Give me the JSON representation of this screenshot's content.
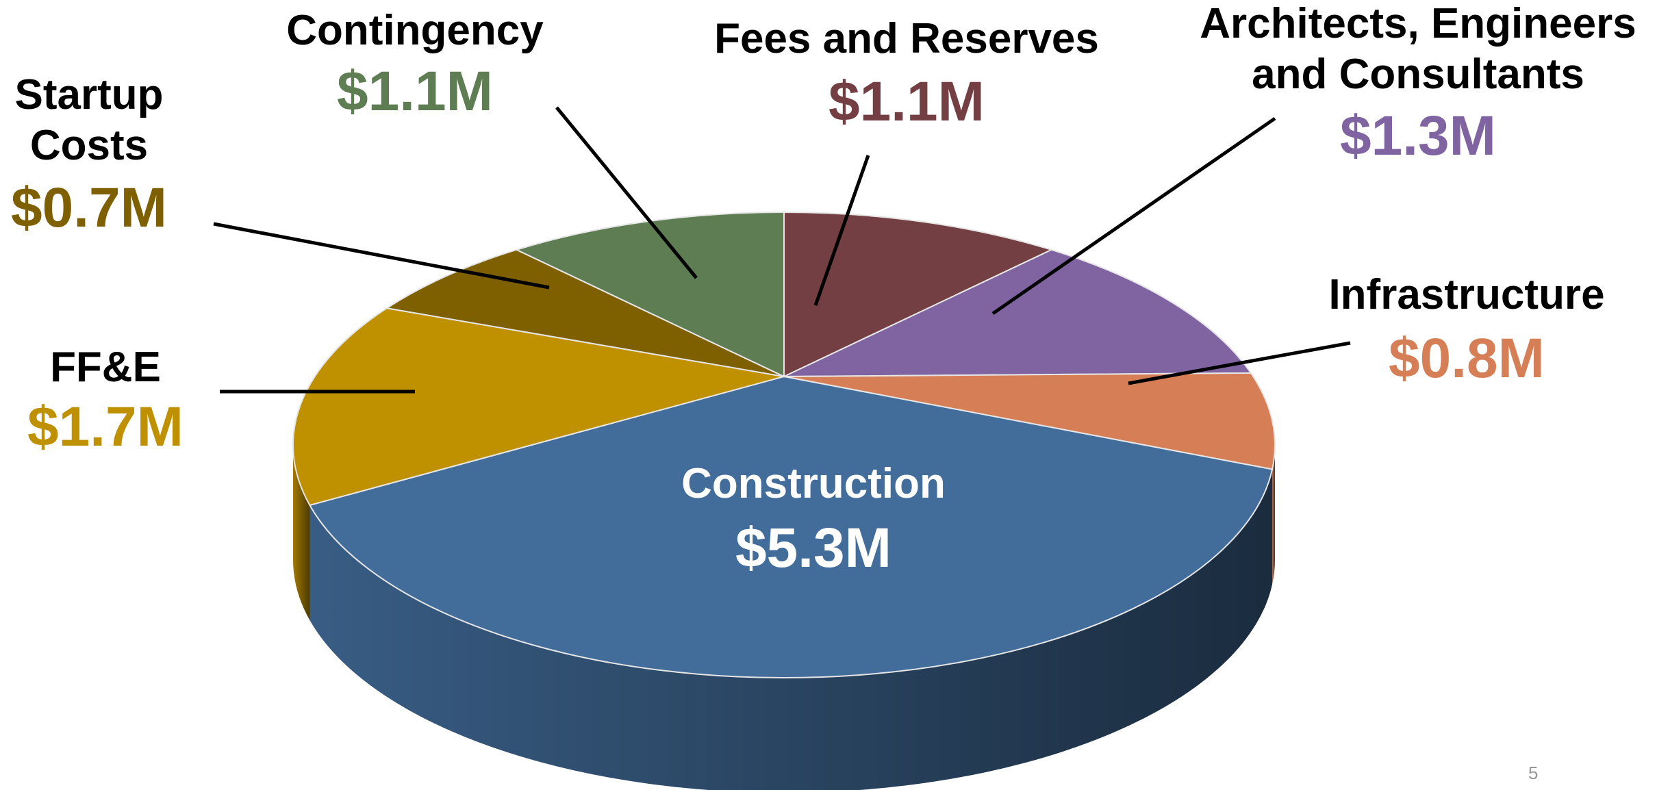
{
  "chart_data": {
    "type": "pie",
    "categories": [
      "Fees and Reserves",
      "Architects, Engineers and Consultants",
      "Infrastructure",
      "Construction",
      "FF&E",
      "Startup Costs",
      "Contingency"
    ],
    "values": [
      1.1,
      1.3,
      0.8,
      5.3,
      1.7,
      0.7,
      1.1
    ],
    "value_labels": [
      "$1.1M",
      "$1.3M",
      "$0.8M",
      "$5.3M",
      "$1.7M",
      "$0.7M",
      "$1.1M"
    ],
    "colors": [
      "#733f43",
      "#8064a2",
      "#d67f56",
      "#426d9b",
      "#bf9000",
      "#7f6000",
      "#5e7d52"
    ]
  },
  "slide_number": "5"
}
